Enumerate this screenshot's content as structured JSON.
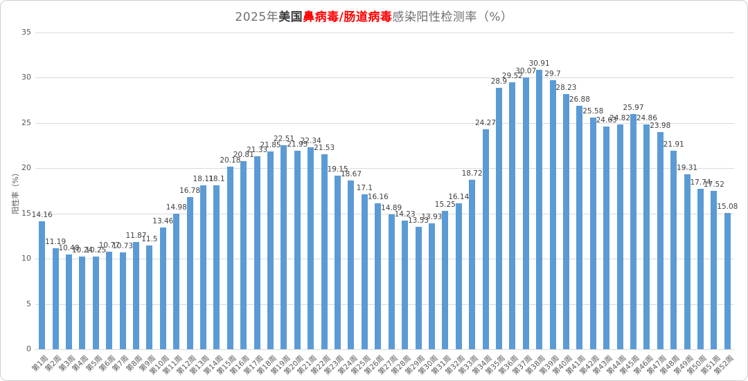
{
  "chart_data": {
    "type": "bar",
    "title": "2025年美国鼻病毒/肠道病毒感染阳性检测率（%）",
    "title_parts": [
      {
        "text": "2025年",
        "style": "gray"
      },
      {
        "text": "美国",
        "style": "dark-bold"
      },
      {
        "text": "鼻病毒/肠道病毒",
        "style": "red-bold"
      },
      {
        "text": "感染阳性检测率（%）",
        "style": "gray"
      }
    ],
    "xlabel": "",
    "ylabel": "阳性率（%）",
    "ylim": [
      0,
      35
    ],
    "yticks": [
      0,
      5,
      10,
      15,
      20,
      25,
      30,
      35
    ],
    "grid": true,
    "legend": "none",
    "data_labels": true,
    "bar_color": "#5b9bd5",
    "gridline_color": "#d9d9d9",
    "axis_text_color": "#595959",
    "data_label_color": "#404040",
    "categories": [
      "第1周",
      "第2周",
      "第3周",
      "第4周",
      "第5周",
      "第6周",
      "第7周",
      "第8周",
      "第9周",
      "第10周",
      "第11周",
      "第12周",
      "第13周",
      "第14周",
      "第15周",
      "第16周",
      "第17周",
      "第18周",
      "第19周",
      "第20周",
      "第21周",
      "第22周",
      "第23周",
      "第24周",
      "第25周",
      "第26周",
      "第27周",
      "第28周",
      "第29周",
      "第30周",
      "第31周",
      "第32周",
      "第33周",
      "第34周",
      "第35周",
      "第36周",
      "第37周",
      "第38周",
      "第39周",
      "第40周",
      "第41周",
      "第42周",
      "第43周",
      "第44周",
      "第45周",
      "第46周",
      "第47周",
      "第48周",
      "第49周",
      "第50周",
      "第51周",
      "第52周"
    ],
    "values": [
      14.16,
      11.19,
      10.48,
      10.24,
      10.25,
      10.77,
      10.73,
      11.87,
      11.5,
      13.46,
      14.98,
      16.78,
      18.11,
      18.1,
      20.18,
      20.81,
      21.33,
      21.85,
      22.51,
      21.95,
      22.34,
      21.53,
      19.15,
      18.67,
      17.1,
      16.16,
      14.89,
      14.23,
      13.53,
      13.93,
      15.25,
      16.14,
      18.72,
      24.27,
      28.9,
      29.52,
      30.07,
      30.91,
      29.7,
      28.23,
      26.88,
      25.58,
      24.63,
      24.82,
      25.97,
      24.86,
      23.98,
      21.91,
      19.31,
      17.74,
      17.52,
      15.08
    ]
  }
}
